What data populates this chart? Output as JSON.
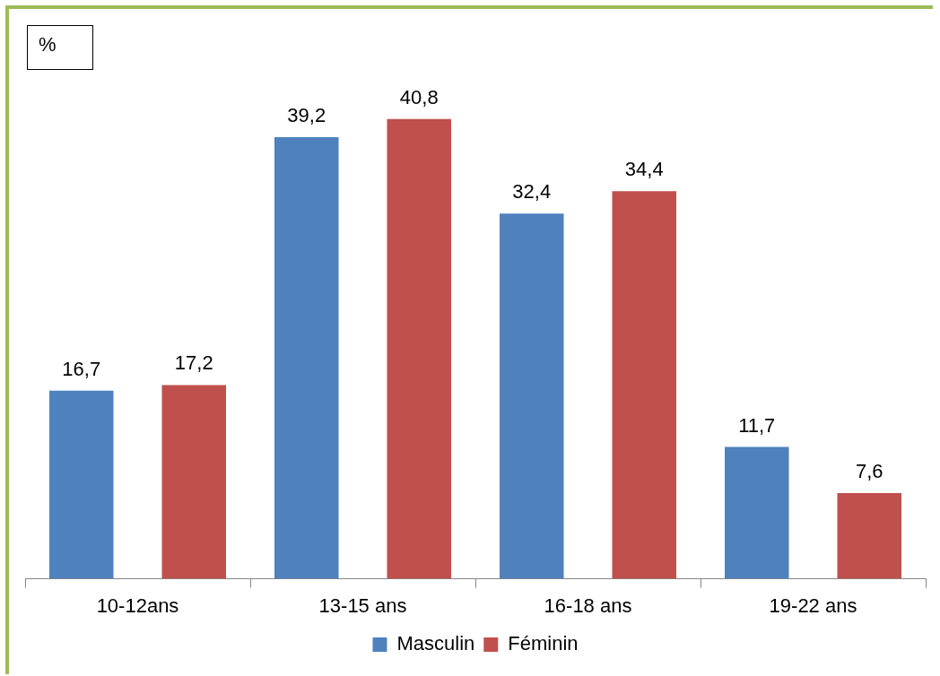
{
  "chart_data": {
    "type": "bar",
    "ylabel": "%",
    "categories": [
      "10-12ans",
      "13-15 ans",
      "16-18 ans",
      "19-22 ans"
    ],
    "series": [
      {
        "name": "Masculin",
        "color": "#4f81bd",
        "values": [
          16.7,
          39.2,
          32.4,
          11.7
        ],
        "value_labels": [
          "16,7",
          "39,2",
          "32,4",
          "11,7"
        ]
      },
      {
        "name": "Féminin",
        "color": "#c0504d",
        "values": [
          17.2,
          40.8,
          34.4,
          7.6
        ],
        "value_labels": [
          "17,2",
          "40,8",
          "34,4",
          "7,6"
        ]
      }
    ],
    "grid": false,
    "legend": "bottom",
    "tick_labels": "x"
  }
}
